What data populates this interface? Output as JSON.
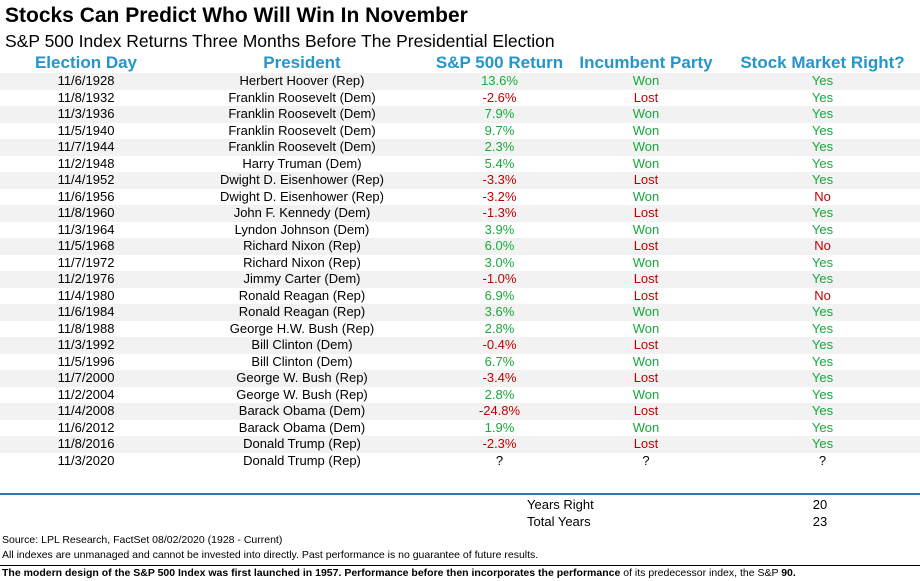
{
  "title": "Stocks Can Predict Who Will Win In November",
  "subtitle": "S&P 500 Index Returns Three Months Before The Presidential Election",
  "columns": {
    "date": "Election Day",
    "president": "President",
    "return": "S&P 500 Return",
    "party": "Incumbent Party",
    "right": "Stock Market Right?"
  },
  "colors": {
    "header": "#2596c9",
    "positive": "#18a83c",
    "negative": "#c00000",
    "row_shade": "#f2f2f2",
    "divider": "#2f75b5"
  },
  "rows": [
    {
      "date": "11/6/1928",
      "president": "Herbert Hoover (Rep)",
      "ret": "13.6%",
      "party": "Won",
      "right": "Yes"
    },
    {
      "date": "11/8/1932",
      "president": "Franklin Roosevelt (Dem)",
      "ret": "-2.6%",
      "party": "Lost",
      "right": "Yes"
    },
    {
      "date": "11/3/1936",
      "president": "Franklin Roosevelt (Dem)",
      "ret": "7.9%",
      "party": "Won",
      "right": "Yes"
    },
    {
      "date": "11/5/1940",
      "president": "Franklin Roosevelt (Dem)",
      "ret": "9.7%",
      "party": "Won",
      "right": "Yes"
    },
    {
      "date": "11/7/1944",
      "president": "Franklin Roosevelt (Dem)",
      "ret": "2.3%",
      "party": "Won",
      "right": "Yes"
    },
    {
      "date": "11/2/1948",
      "president": "Harry Truman (Dem)",
      "ret": "5.4%",
      "party": "Won",
      "right": "Yes"
    },
    {
      "date": "11/4/1952",
      "president": "Dwight D. Eisenhower (Rep)",
      "ret": "-3.3%",
      "party": "Lost",
      "right": "Yes"
    },
    {
      "date": "11/6/1956",
      "president": "Dwight D. Eisenhower (Rep)",
      "ret": "-3.2%",
      "party": "Won",
      "right": "No"
    },
    {
      "date": "11/8/1960",
      "president": "John F. Kennedy (Dem)",
      "ret": "-1.3%",
      "party": "Lost",
      "right": "Yes"
    },
    {
      "date": "11/3/1964",
      "president": "Lyndon Johnson (Dem)",
      "ret": "3.9%",
      "party": "Won",
      "right": "Yes"
    },
    {
      "date": "11/5/1968",
      "president": "Richard Nixon (Rep)",
      "ret": "6.0%",
      "party": "Lost",
      "right": "No"
    },
    {
      "date": "11/7/1972",
      "president": "Richard Nixon (Rep)",
      "ret": "3.0%",
      "party": "Won",
      "right": "Yes"
    },
    {
      "date": "11/2/1976",
      "president": "Jimmy Carter (Dem)",
      "ret": "-1.0%",
      "party": "Lost",
      "right": "Yes"
    },
    {
      "date": "11/4/1980",
      "president": "Ronald Reagan (Rep)",
      "ret": "6.9%",
      "party": "Lost",
      "right": "No"
    },
    {
      "date": "11/6/1984",
      "president": "Ronald Reagan (Rep)",
      "ret": "3.6%",
      "party": "Won",
      "right": "Yes"
    },
    {
      "date": "11/8/1988",
      "president": "George H.W. Bush (Rep)",
      "ret": "2.8%",
      "party": "Won",
      "right": "Yes"
    },
    {
      "date": "11/3/1992",
      "president": "Bill Clinton (Dem)",
      "ret": "-0.4%",
      "party": "Lost",
      "right": "Yes"
    },
    {
      "date": "11/5/1996",
      "president": "Bill Clinton (Dem)",
      "ret": "6.7%",
      "party": "Won",
      "right": "Yes"
    },
    {
      "date": "11/7/2000",
      "president": "George W. Bush (Rep)",
      "ret": "-3.4%",
      "party": "Lost",
      "right": "Yes"
    },
    {
      "date": "11/2/2004",
      "president": "George W. Bush (Rep)",
      "ret": "2.8%",
      "party": "Won",
      "right": "Yes"
    },
    {
      "date": "11/4/2008",
      "president": "Barack Obama (Dem)",
      "ret": "-24.8%",
      "party": "Lost",
      "right": "Yes"
    },
    {
      "date": "11/6/2012",
      "president": "Barack Obama (Dem)",
      "ret": "1.9%",
      "party": "Won",
      "right": "Yes"
    },
    {
      "date": "11/8/2016",
      "president": "Donald Trump (Rep)",
      "ret": "-2.3%",
      "party": "Lost",
      "right": "Yes"
    },
    {
      "date": "11/3/2020",
      "president": "Donald Trump (Rep)",
      "ret": "?",
      "party": "?",
      "right": "?"
    }
  ],
  "summary": {
    "years_right_label": "Years Right",
    "years_right_value": "20",
    "total_years_label": "Total Years",
    "total_years_value": "23"
  },
  "footer": {
    "source": "Source: LPL Research, FactSet 08/02/2020 (1928 - Current)",
    "disclaimer": "All indexes are unmanaged and cannot be invested into directly. Past performance is no guarantee of future results.",
    "note_bold": "The modern design of the S&P 500 Index was first launched in 1957. Performance before then incorporates the performance",
    "note_rest": " of its  predecessor index, the S&P ",
    "note_end": "90."
  }
}
